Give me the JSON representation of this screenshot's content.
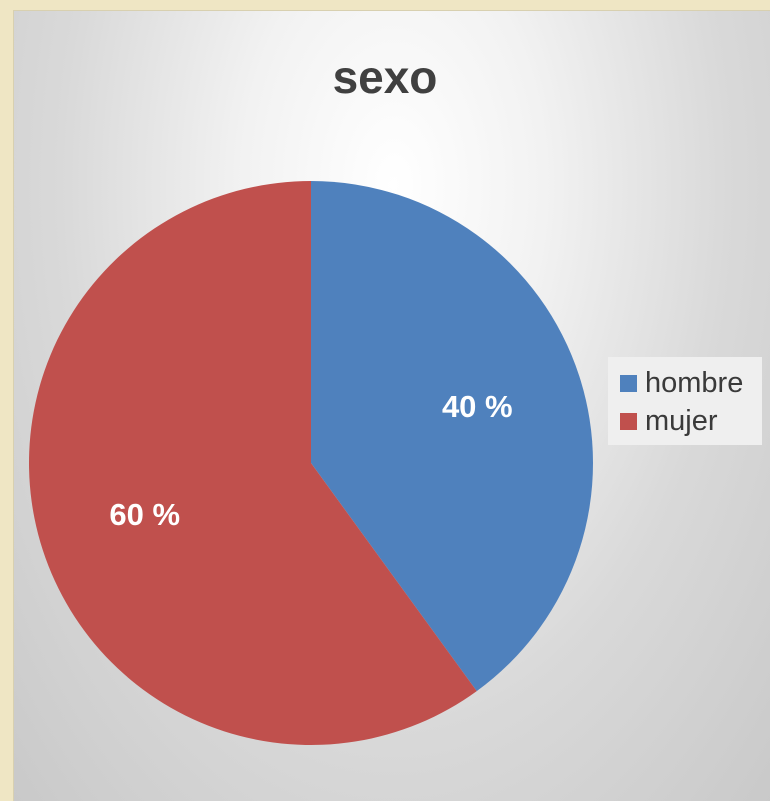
{
  "chart_data": {
    "type": "pie",
    "title": "sexo",
    "categories": [
      "hombre",
      "mujer"
    ],
    "values": [
      40,
      60
    ],
    "data_labels": [
      "40 %",
      "60 %"
    ],
    "colors": [
      "#4f81bd",
      "#c0504d"
    ],
    "legend_position": "right",
    "start_angle": "12 o'clock, clockwise"
  }
}
